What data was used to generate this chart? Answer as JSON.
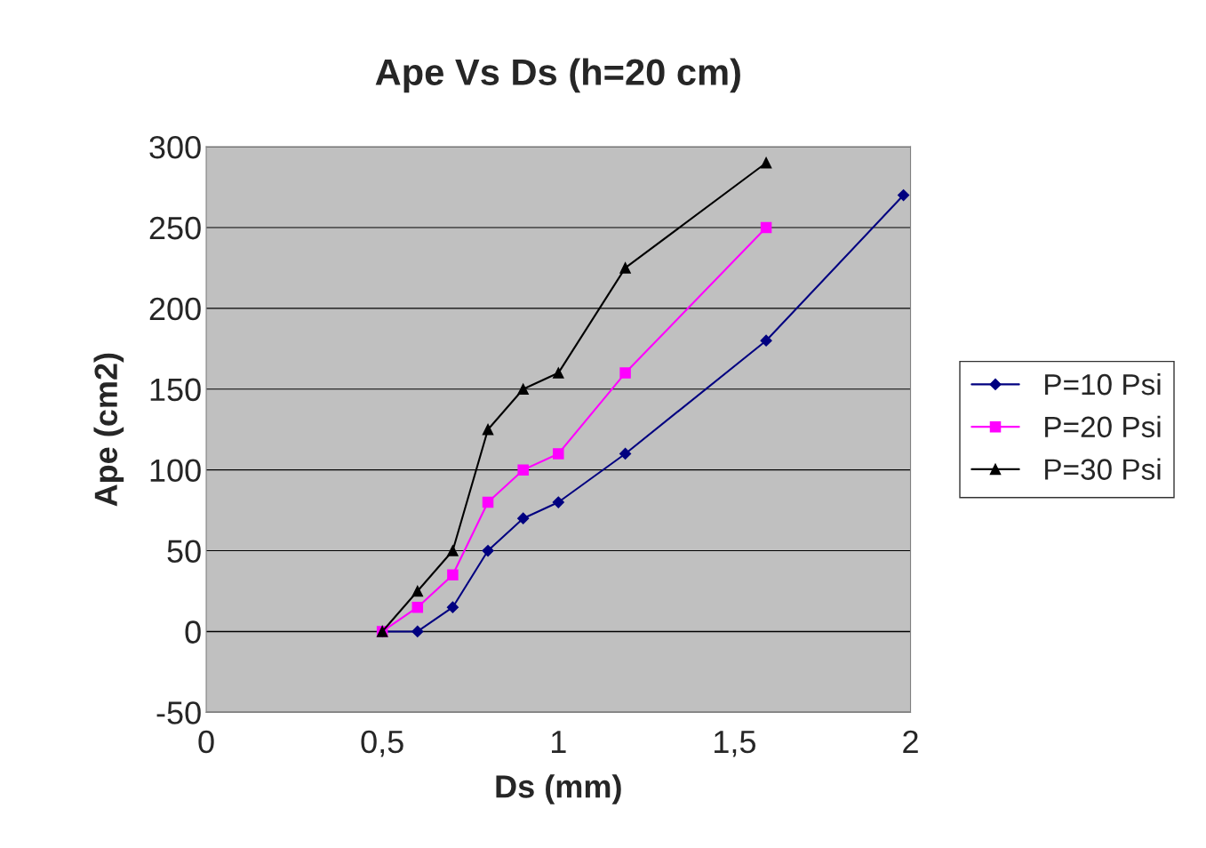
{
  "chart_data": {
    "type": "line",
    "title": "Ape Vs Ds (h=20 cm)",
    "xlabel": "Ds (mm)",
    "ylabel": "Ape (cm2)",
    "xlim": [
      0,
      2
    ],
    "xticks": [
      0,
      {
        "value": 0.5,
        "label": "0,5"
      },
      1,
      {
        "value": 1.5,
        "label": "1,5"
      },
      2
    ],
    "ylim": [
      -50,
      300
    ],
    "yticks": [
      -50,
      0,
      50,
      100,
      150,
      200,
      250,
      300
    ],
    "grid": "y",
    "legend": "right",
    "series": [
      {
        "name": "P=10 Psi",
        "color": "#000080",
        "marker": "diamond",
        "x": [
          0.5,
          0.6,
          0.7,
          0.8,
          0.9,
          1.0,
          1.19,
          1.59,
          1.98
        ],
        "values": [
          0,
          0,
          15,
          50,
          70,
          80,
          110,
          180,
          270
        ]
      },
      {
        "name": "P=20 Psi",
        "color": "#ff00ff",
        "marker": "square",
        "x": [
          0.5,
          0.6,
          0.7,
          0.8,
          0.9,
          1.0,
          1.19,
          1.59
        ],
        "values": [
          0,
          15,
          35,
          80,
          100,
          110,
          160,
          250
        ]
      },
      {
        "name": "P=30 Psi",
        "color": "#000000",
        "marker": "triangle",
        "x": [
          0.5,
          0.6,
          0.7,
          0.8,
          0.9,
          1.0,
          1.19,
          1.59
        ],
        "values": [
          0,
          25,
          50,
          125,
          150,
          160,
          225,
          290
        ]
      }
    ]
  }
}
